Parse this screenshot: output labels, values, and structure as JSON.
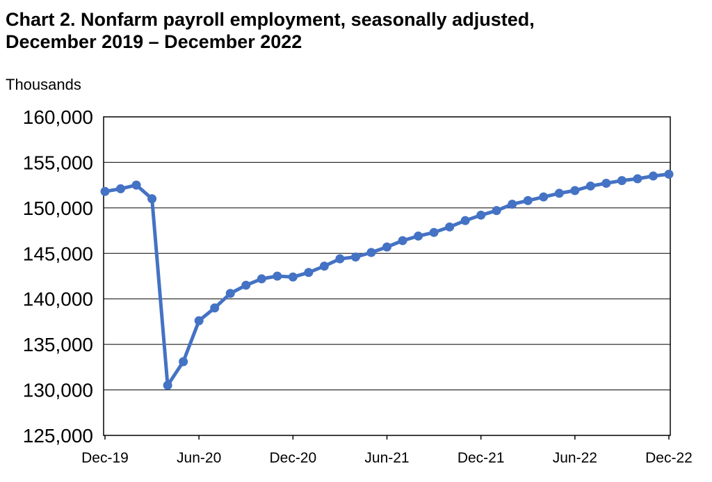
{
  "chart_data": {
    "type": "line",
    "title_line1": "Chart 2. Nonfarm payroll employment, seasonally adjusted,",
    "title_line2": "December 2019 – December 2022",
    "ylabel": "Thousands",
    "xlabel": "",
    "ylim": [
      125000,
      160000
    ],
    "y_ticks": [
      "125,000",
      "130,000",
      "135,000",
      "140,000",
      "145,000",
      "150,000",
      "155,000",
      "160,000"
    ],
    "x_tick_labels": [
      "Dec-19",
      "Jun-20",
      "Dec-20",
      "Jun-21",
      "Dec-21",
      "Jun-22",
      "Dec-22"
    ],
    "grid": true,
    "line_color": "#4472c4",
    "series": [
      {
        "x": [
          "2019-12",
          "2020-01",
          "2020-02",
          "2020-03",
          "2020-04",
          "2020-05",
          "2020-06",
          "2020-07",
          "2020-08",
          "2020-09",
          "2020-10",
          "2020-11",
          "2020-12",
          "2021-01",
          "2021-02",
          "2021-03",
          "2021-04",
          "2021-05",
          "2021-06",
          "2021-07",
          "2021-08",
          "2021-09",
          "2021-10",
          "2021-11",
          "2021-12",
          "2022-01",
          "2022-02",
          "2022-03",
          "2022-04",
          "2022-05",
          "2022-06",
          "2022-07",
          "2022-08",
          "2022-09",
          "2022-10",
          "2022-11",
          "2022-12"
        ],
        "values": [
          151800,
          152100,
          152500,
          151000,
          130500,
          133100,
          137600,
          139000,
          140600,
          141500,
          142200,
          142500,
          142400,
          142900,
          143600,
          144400,
          144600,
          145100,
          145700,
          146400,
          146900,
          147300,
          147900,
          148600,
          149200,
          149700,
          150400,
          150800,
          151200,
          151600,
          151900,
          152400,
          152700,
          153000,
          153200,
          153500,
          153700
        ]
      }
    ]
  }
}
